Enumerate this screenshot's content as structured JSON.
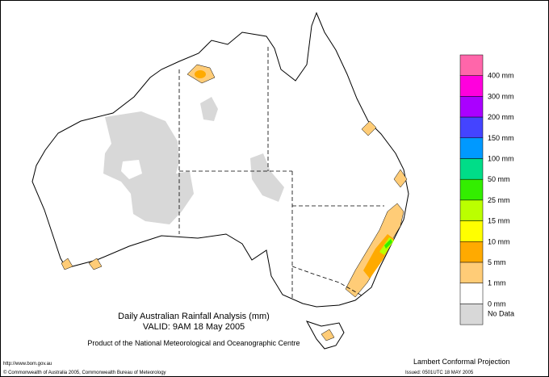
{
  "map": {
    "title": "Daily Australian Rainfall Analysis (mm)",
    "valid": "VALID: 9AM 18 May 2005",
    "product": "Product of the National Meteorological and Oceanographic Centre",
    "url": "http://www.bom.gov.au",
    "copyright": "© Commonwealth of Australia 2005, Commonwealth Bureau of Meteorology",
    "projection": "Lambert Conformal Projection",
    "issued": "Issued: 0501UTC 18 MAY 2005",
    "legend": {
      "colors": [
        "#ff66aa",
        "#ff00dd",
        "#aa00ff",
        "#4444ff",
        "#0099ff",
        "#00dd88",
        "#33ee00",
        "#bbff00",
        "#ffff00",
        "#ffaa00",
        "#ffcc77",
        "#ffffff",
        "#d8d8d8"
      ],
      "labels": [
        "400 mm",
        "300 mm",
        "200 mm",
        "150 mm",
        "100 mm",
        "50 mm",
        "25 mm",
        "15 mm",
        "10 mm",
        "5 mm",
        "1 mm",
        "0 mm",
        "No Data"
      ]
    }
  }
}
